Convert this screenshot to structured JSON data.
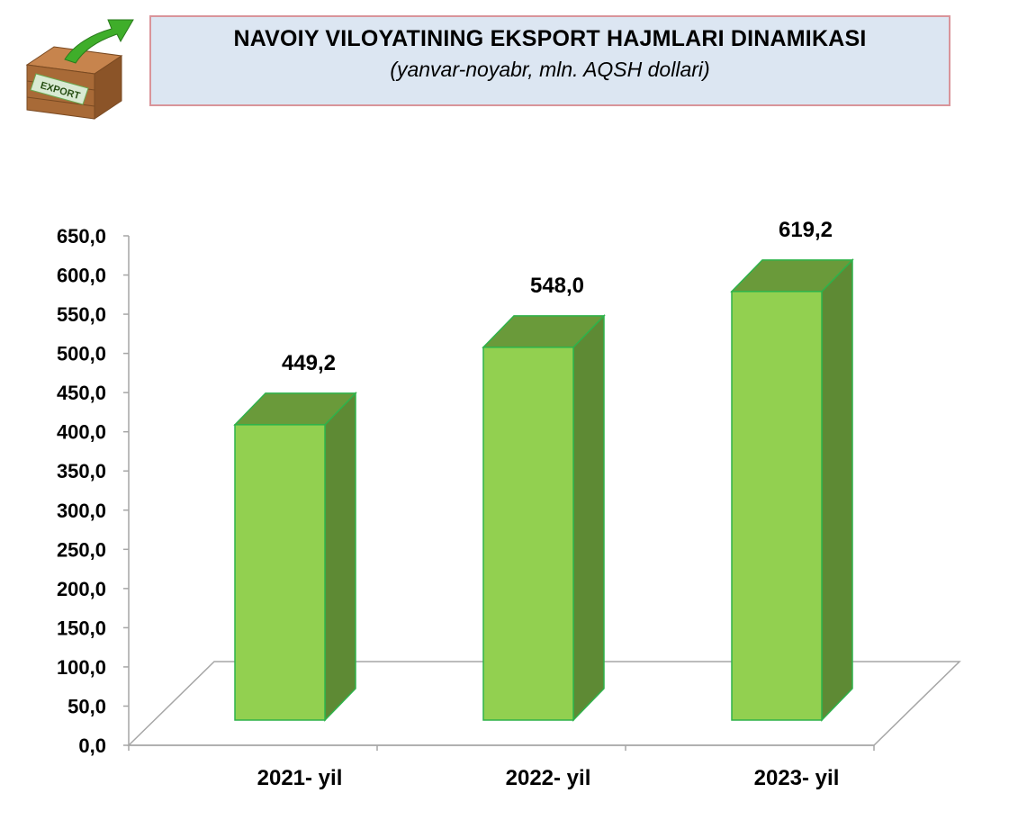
{
  "header": {
    "title": "NAVOIY VILOYATINING EKSPORT HAJMLARI DINAMIKASI",
    "subtitle": "(yanvar-noyabr, mln. AQSH dollari)",
    "logo_text": "EXPORT"
  },
  "colors": {
    "bar_front": "#92d050",
    "bar_side": "#5e8a34",
    "bar_top": "#6a9a3a",
    "bar_edge": "#2fb24a",
    "floor_line": "#a6a6a6",
    "title_bg": "#dce6f2",
    "title_border": "#d9949a"
  },
  "chart_data": {
    "type": "bar",
    "categories": [
      "2021- yil",
      "2022- yil",
      "2023- yil"
    ],
    "values": [
      449.2,
      548.0,
      619.2
    ],
    "value_labels": [
      "449,2",
      "548,0",
      "619,2"
    ],
    "ylim": [
      0,
      650
    ],
    "yticks": [
      "0,0",
      "50,0",
      "100,0",
      "150,0",
      "200,0",
      "250,0",
      "300,0",
      "350,0",
      "400,0",
      "450,0",
      "500,0",
      "550,0",
      "600,0",
      "650,0"
    ],
    "three_d": true,
    "grid": false,
    "legend": "none"
  }
}
